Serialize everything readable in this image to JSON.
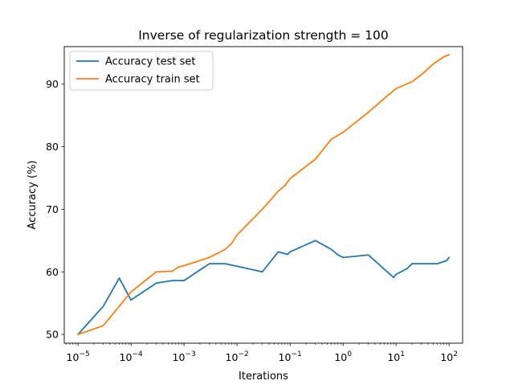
{
  "chart_data": {
    "type": "line",
    "title": "Inverse of regularization strength = 100",
    "xlabel": "Iterations",
    "ylabel": "Accuracy (%)",
    "xscale": "log",
    "xlim": [
      5.5e-06,
      180
    ],
    "ylim": [
      48.6,
      96.0
    ],
    "grid": false,
    "legend_position": "top-left",
    "x_ticks": [
      {
        "value": 1e-05,
        "base": "10",
        "exp": "−5"
      },
      {
        "value": 0.0001,
        "base": "10",
        "exp": "−4"
      },
      {
        "value": 0.001,
        "base": "10",
        "exp": "−3"
      },
      {
        "value": 0.01,
        "base": "10",
        "exp": "−2"
      },
      {
        "value": 0.1,
        "base": "10",
        "exp": "−1"
      },
      {
        "value": 1,
        "base": "10",
        "exp": "0"
      },
      {
        "value": 10,
        "base": "10",
        "exp": "1"
      },
      {
        "value": 100,
        "base": "10",
        "exp": "2"
      }
    ],
    "y_ticks": [
      {
        "value": 50,
        "label": "50"
      },
      {
        "value": 60,
        "label": "60"
      },
      {
        "value": 70,
        "label": "70"
      },
      {
        "value": 80,
        "label": "80"
      },
      {
        "value": 90,
        "label": "90"
      }
    ],
    "series": [
      {
        "name": "Accuracy test set",
        "color": "#1f77b4",
        "points": [
          [
            1e-05,
            50.0
          ],
          [
            3e-05,
            54.5
          ],
          [
            6e-05,
            59.0
          ],
          [
            0.0001,
            55.5
          ],
          [
            0.0003,
            58.2
          ],
          [
            0.0006,
            58.6
          ],
          [
            0.001,
            58.6
          ],
          [
            0.003,
            61.3
          ],
          [
            0.006,
            61.3
          ],
          [
            0.01,
            60.9
          ],
          [
            0.03,
            60.0
          ],
          [
            0.06,
            63.2
          ],
          [
            0.09,
            62.8
          ],
          [
            0.1,
            63.2
          ],
          [
            0.3,
            65.0
          ],
          [
            0.6,
            63.6
          ],
          [
            0.8,
            62.7
          ],
          [
            1,
            62.3
          ],
          [
            3,
            62.7
          ],
          [
            9,
            59.1
          ],
          [
            10,
            59.6
          ],
          [
            16,
            60.5
          ],
          [
            20,
            61.3
          ],
          [
            60,
            61.3
          ],
          [
            90,
            61.8
          ],
          [
            100,
            62.3
          ]
        ]
      },
      {
        "name": "Accuracy train set",
        "color": "#ff7f0e",
        "points": [
          [
            1e-05,
            50.0
          ],
          [
            3e-05,
            51.4
          ],
          [
            6e-05,
            54.5
          ],
          [
            0.0001,
            56.8
          ],
          [
            0.0003,
            60.0
          ],
          [
            0.0006,
            60.1
          ],
          [
            0.0008,
            60.8
          ],
          [
            0.001,
            61.0
          ],
          [
            0.003,
            62.3
          ],
          [
            0.006,
            63.6
          ],
          [
            0.008,
            64.6
          ],
          [
            0.01,
            65.9
          ],
          [
            0.03,
            70.0
          ],
          [
            0.06,
            72.9
          ],
          [
            0.08,
            73.8
          ],
          [
            0.1,
            74.9
          ],
          [
            0.3,
            78.0
          ],
          [
            0.6,
            81.2
          ],
          [
            1,
            82.3
          ],
          [
            3,
            85.5
          ],
          [
            6,
            87.7
          ],
          [
            8,
            88.6
          ],
          [
            10,
            89.3
          ],
          [
            20,
            90.4
          ],
          [
            30,
            91.5
          ],
          [
            50,
            93.2
          ],
          [
            80,
            94.4
          ],
          [
            100,
            94.7
          ]
        ]
      }
    ]
  }
}
